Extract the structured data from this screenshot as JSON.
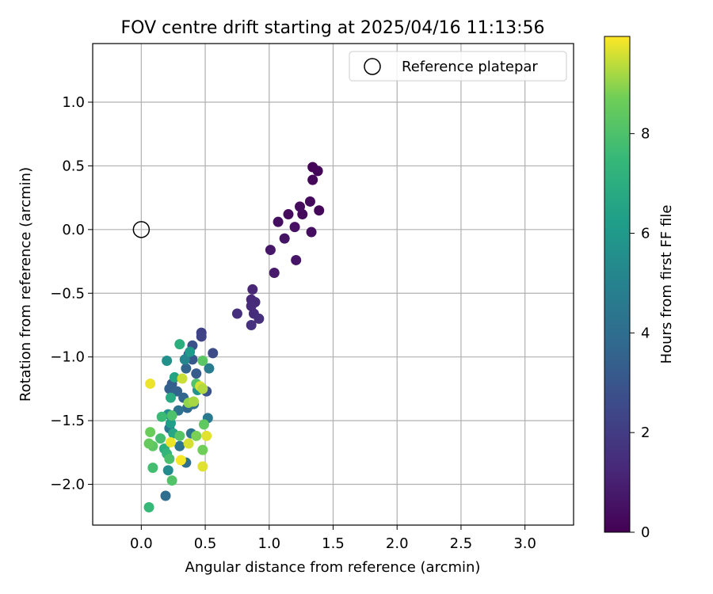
{
  "chart_data": {
    "type": "scatter",
    "title": "FOV centre drift starting at 2025/04/16 11:13:56",
    "xlabel": "Angular distance from reference (arcmin)",
    "ylabel": "Rotation from reference (arcmin)",
    "xlim": [
      -0.38,
      3.38
    ],
    "ylim": [
      -2.32,
      1.46
    ],
    "xticks": [
      0.0,
      0.5,
      1.0,
      1.5,
      2.0,
      2.5,
      3.0
    ],
    "xtick_labels": [
      "0.0",
      "0.5",
      "1.0",
      "1.5",
      "2.0",
      "2.5",
      "3.0"
    ],
    "yticks": [
      1.0,
      0.5,
      0.0,
      -0.5,
      -1.0,
      -1.5,
      -2.0
    ],
    "ytick_labels": [
      "1.0",
      "0.5",
      "0.0",
      "−0.5",
      "−1.0",
      "−1.5",
      "−2.0"
    ],
    "grid": true,
    "legend": {
      "placement": "top-right",
      "entries": [
        {
          "label": "Reference platepar",
          "marker": "open-circle"
        }
      ]
    },
    "reference": {
      "x": 0.0,
      "y": 0.0
    },
    "colorbar": {
      "label": "Hours from first FF file",
      "colormap": "viridis",
      "range": [
        0,
        9.95
      ],
      "ticks": [
        0,
        2,
        4,
        6,
        8
      ],
      "tick_labels": [
        "0",
        "2",
        "4",
        "6",
        "8"
      ]
    },
    "points": [
      [
        1.34,
        0.49,
        0.1
      ],
      [
        1.38,
        0.46,
        0.15
      ],
      [
        1.34,
        0.39,
        0.2
      ],
      [
        1.39,
        0.15,
        0.2
      ],
      [
        1.32,
        0.22,
        0.3
      ],
      [
        1.26,
        0.12,
        0.25
      ],
      [
        1.24,
        0.18,
        0.35
      ],
      [
        1.15,
        0.12,
        0.35
      ],
      [
        1.07,
        0.06,
        0.45
      ],
      [
        1.2,
        0.02,
        0.5
      ],
      [
        1.33,
        -0.02,
        0.4
      ],
      [
        1.12,
        -0.07,
        0.6
      ],
      [
        1.01,
        -0.16,
        0.7
      ],
      [
        1.21,
        -0.24,
        0.65
      ],
      [
        1.04,
        -0.34,
        0.8
      ],
      [
        0.87,
        -0.47,
        1.2
      ],
      [
        0.86,
        -0.55,
        1.3
      ],
      [
        0.89,
        -0.57,
        1.35
      ],
      [
        0.86,
        -0.6,
        1.4
      ],
      [
        0.88,
        -0.66,
        1.45
      ],
      [
        0.92,
        -0.7,
        1.5
      ],
      [
        0.75,
        -0.66,
        1.5
      ],
      [
        0.86,
        -0.75,
        1.6
      ],
      [
        0.47,
        -0.81,
        2.2
      ],
      [
        0.47,
        -0.84,
        2.3
      ],
      [
        0.56,
        -0.97,
        2.6
      ],
      [
        0.4,
        -0.91,
        2.8
      ],
      [
        0.37,
        -0.98,
        3.0
      ],
      [
        0.4,
        -1.02,
        3.1
      ],
      [
        0.43,
        -1.13,
        3.2
      ],
      [
        0.51,
        -1.27,
        2.9
      ],
      [
        0.35,
        -1.09,
        3.6
      ],
      [
        0.24,
        -1.21,
        3.3
      ],
      [
        0.22,
        -1.25,
        3.4
      ],
      [
        0.28,
        -1.27,
        3.5
      ],
      [
        0.33,
        -1.32,
        3.7
      ],
      [
        0.36,
        -1.4,
        3.8
      ],
      [
        0.41,
        -1.37,
        4.0
      ],
      [
        0.29,
        -1.42,
        4.2
      ],
      [
        0.52,
        -1.48,
        4.6
      ],
      [
        0.22,
        -1.56,
        4.5
      ],
      [
        0.39,
        -1.6,
        4.3
      ],
      [
        0.3,
        -1.7,
        4.4
      ],
      [
        0.35,
        -1.83,
        4.1
      ],
      [
        0.19,
        -2.09,
        4.0
      ],
      [
        0.53,
        -1.09,
        4.7
      ],
      [
        0.34,
        -1.02,
        5.2
      ],
      [
        0.2,
        -1.03,
        5.6
      ],
      [
        0.38,
        -0.96,
        6.0
      ],
      [
        0.26,
        -1.16,
        6.5
      ],
      [
        0.3,
        -0.9,
        7.0
      ],
      [
        0.44,
        -1.26,
        5.8
      ],
      [
        0.21,
        -1.45,
        5.5
      ],
      [
        0.23,
        -1.52,
        6.2
      ],
      [
        0.25,
        -1.6,
        6.6
      ],
      [
        0.21,
        -1.89,
        5.4
      ],
      [
        0.23,
        -1.32,
        6.8
      ],
      [
        0.18,
        -1.72,
        7.0
      ],
      [
        0.2,
        -1.76,
        7.4
      ],
      [
        0.16,
        -1.47,
        7.6
      ],
      [
        0.15,
        -1.64,
        7.8
      ],
      [
        0.22,
        -1.8,
        7.9
      ],
      [
        0.24,
        -1.97,
        8.1
      ],
      [
        0.09,
        -1.87,
        7.8
      ],
      [
        0.06,
        -2.18,
        7.5
      ],
      [
        0.09,
        -1.7,
        8.3
      ],
      [
        0.06,
        -1.68,
        8.5
      ],
      [
        0.07,
        -1.59,
        8.6
      ],
      [
        0.24,
        -1.46,
        8.0
      ],
      [
        0.3,
        -1.62,
        8.2
      ],
      [
        0.43,
        -1.62,
        8.8
      ],
      [
        0.49,
        -1.53,
        8.4
      ],
      [
        0.48,
        -1.73,
        8.7
      ],
      [
        0.48,
        -1.03,
        8.3
      ],
      [
        0.43,
        -1.21,
        8.1
      ],
      [
        0.37,
        -1.36,
        9.0
      ],
      [
        0.41,
        -1.35,
        9.2
      ],
      [
        0.32,
        -1.17,
        9.5
      ],
      [
        0.46,
        -1.23,
        9.6
      ],
      [
        0.48,
        -1.25,
        9.3
      ],
      [
        0.51,
        -1.62,
        9.7
      ],
      [
        0.23,
        -1.67,
        9.8
      ],
      [
        0.37,
        -1.68,
        9.6
      ],
      [
        0.31,
        -1.81,
        9.9
      ],
      [
        0.48,
        -1.86,
        9.7
      ],
      [
        0.07,
        -1.21,
        9.8
      ]
    ]
  }
}
